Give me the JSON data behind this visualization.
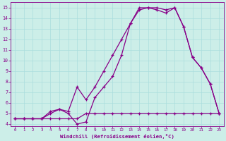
{
  "xlabel": "Windchill (Refroidissement éolien,°C)",
  "bg_color": "#cceee8",
  "line_color": "#880088",
  "grid_color": "#aadddd",
  "xlim_min": -0.5,
  "xlim_max": 23.5,
  "ylim_min": 3.8,
  "ylim_max": 15.5,
  "xticks": [
    0,
    1,
    2,
    3,
    4,
    5,
    6,
    7,
    8,
    9,
    10,
    11,
    12,
    13,
    14,
    15,
    16,
    17,
    18,
    19,
    20,
    21,
    22,
    23
  ],
  "yticks": [
    4,
    5,
    6,
    7,
    8,
    9,
    10,
    11,
    12,
    13,
    14,
    15
  ],
  "line1_x": [
    0,
    1,
    2,
    3,
    4,
    5,
    6,
    7,
    8,
    9,
    10,
    11,
    12,
    13,
    14,
    15,
    16,
    17,
    18,
    19,
    20,
    21,
    22,
    23
  ],
  "line1_y": [
    4.5,
    4.5,
    4.5,
    4.5,
    4.5,
    4.5,
    4.5,
    4.5,
    5.0,
    5.0,
    5.0,
    5.0,
    5.0,
    5.0,
    5.0,
    5.0,
    5.0,
    5.0,
    5.0,
    5.0,
    5.0,
    5.0,
    5.0,
    5.0
  ],
  "line2_x": [
    0,
    1,
    2,
    3,
    4,
    5,
    6,
    7,
    8,
    9,
    10,
    11,
    12,
    13,
    14,
    15,
    16,
    17,
    18,
    19,
    20,
    21,
    22,
    23
  ],
  "line2_y": [
    4.5,
    4.5,
    4.5,
    4.5,
    5.2,
    5.4,
    5.0,
    4.0,
    4.2,
    6.5,
    7.5,
    8.5,
    10.5,
    13.5,
    15.0,
    15.0,
    14.8,
    14.5,
    15.0,
    13.2,
    10.3,
    9.3,
    7.8,
    5.0
  ],
  "line3_x": [
    0,
    1,
    2,
    3,
    4,
    5,
    6,
    7,
    8,
    9,
    10,
    11,
    12,
    13,
    14,
    15,
    16,
    17,
    18,
    19,
    20,
    21,
    22,
    23
  ],
  "line3_y": [
    4.5,
    4.5,
    4.5,
    4.5,
    5.0,
    5.4,
    5.2,
    7.5,
    6.3,
    7.5,
    9.0,
    10.5,
    12.0,
    13.5,
    14.8,
    15.0,
    15.0,
    14.8,
    15.0,
    13.2,
    10.3,
    9.3,
    7.8,
    5.0
  ]
}
